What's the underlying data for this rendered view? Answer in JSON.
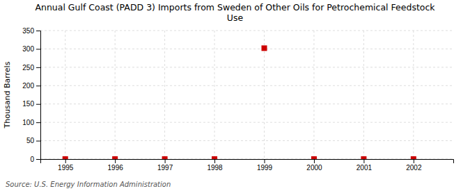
{
  "chart_data": {
    "type": "scatter",
    "title": "Annual Gulf Coast (PADD 3) Imports from Sweden of Other Oils for Petrochemical Feedstock\nUse",
    "ylabel": "Thousand Barrels",
    "annotations": [
      "Source: U.S. Energy Information Administration"
    ],
    "x": [
      1995,
      1996,
      1997,
      1998,
      1999,
      2000,
      2001,
      2002
    ],
    "values": [
      0,
      0,
      0,
      0,
      302,
      0,
      0,
      0
    ],
    "color": "#CC0000",
    "marker": "square",
    "xlim": [
      1994.5,
      2002.8
    ],
    "ylim": [
      0,
      350
    ],
    "xticks": [
      1995,
      1996,
      1997,
      1998,
      1999,
      2000,
      2001,
      2002
    ],
    "yticks": [
      0,
      50,
      100,
      150,
      200,
      250,
      300,
      350
    ],
    "grid": true
  }
}
